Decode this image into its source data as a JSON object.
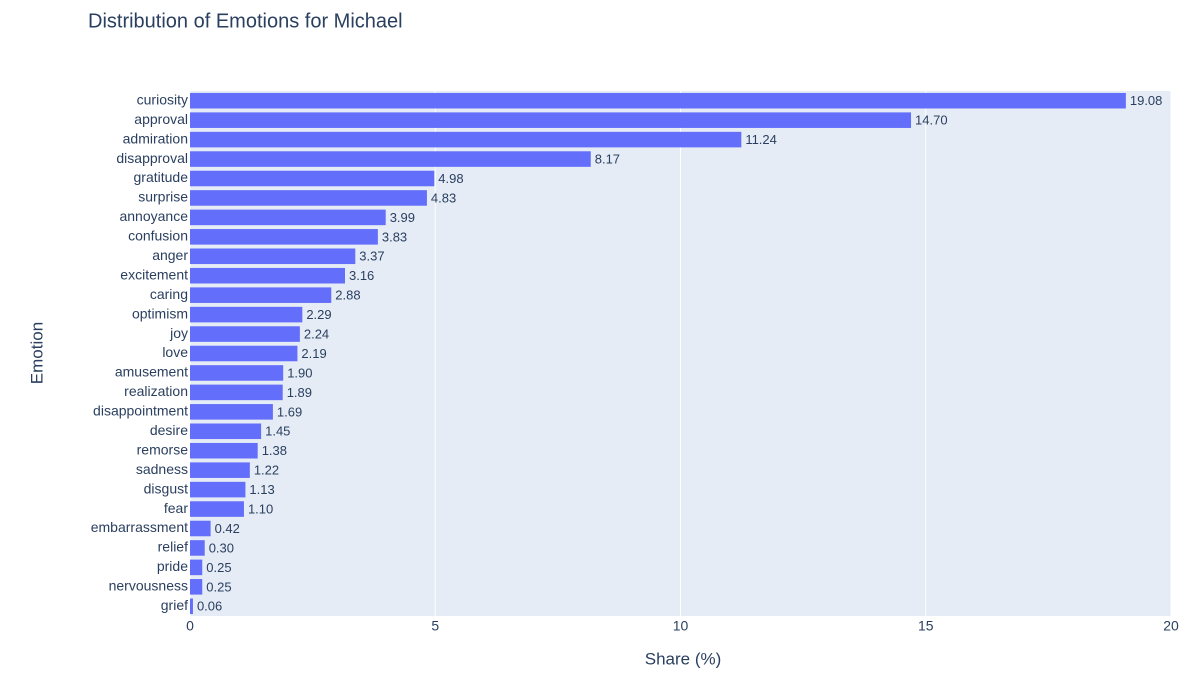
{
  "chart_data": {
    "type": "bar",
    "orientation": "horizontal",
    "title": "Distribution of Emotions for Michael",
    "x_label": "Share (%)",
    "y_label": "Emotion",
    "categories": [
      "curiosity",
      "approval",
      "admiration",
      "disapproval",
      "gratitude",
      "surprise",
      "annoyance",
      "confusion",
      "anger",
      "excitement",
      "caring",
      "optimism",
      "joy",
      "love",
      "amusement",
      "realization",
      "disappointment",
      "desire",
      "remorse",
      "sadness",
      "disgust",
      "fear",
      "embarrassment",
      "relief",
      "pride",
      "nervousness",
      "grief"
    ],
    "values": [
      19.08,
      14.7,
      11.24,
      8.17,
      4.98,
      4.83,
      3.99,
      3.83,
      3.37,
      3.16,
      2.88,
      2.29,
      2.24,
      2.19,
      1.9,
      1.89,
      1.69,
      1.45,
      1.38,
      1.22,
      1.13,
      1.1,
      0.42,
      0.3,
      0.25,
      0.25,
      0.06
    ],
    "value_labels": [
      "19.08",
      "14.70",
      "11.24",
      "8.17",
      "4.98",
      "4.83",
      "3.99",
      "3.83",
      "3.37",
      "3.16",
      "2.88",
      "2.29",
      "2.24",
      "2.19",
      "1.90",
      "1.89",
      "1.69",
      "1.45",
      "1.38",
      "1.22",
      "1.13",
      "1.10",
      "0.42",
      "0.30",
      "0.25",
      "0.25",
      "0.06"
    ],
    "color": "#636efa",
    "xlim": [
      0,
      20
    ],
    "xticks": [
      0,
      5,
      10,
      15,
      20
    ],
    "grid": true
  }
}
